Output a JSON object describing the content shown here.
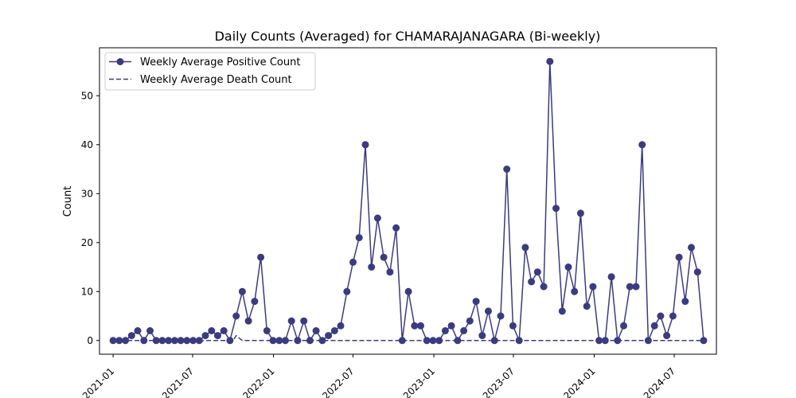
{
  "chart_data": {
    "type": "line",
    "title": "Daily Counts (Averaged) for CHAMARAJANAGARA (Bi-weekly)",
    "xlabel": "",
    "ylabel": "Count",
    "x_tick_labels": [
      "2021-01",
      "2021-07",
      "2022-01",
      "2022-07",
      "2023-01",
      "2023-07",
      "2024-01",
      "2024-07"
    ],
    "y_ticks": [
      0,
      10,
      20,
      30,
      40,
      50
    ],
    "ylim": [
      -2.8,
      59.8
    ],
    "xlim": [
      "2020-12-01",
      "2024-10-05"
    ],
    "legend_position": "top-left",
    "grid": false,
    "colors": {
      "series": "#3b3b7f"
    },
    "series": [
      {
        "name": "Weekly Average Positive Count",
        "style": "solid-marker",
        "x": [
          "2021-01-01",
          "2021-01-15",
          "2021-01-29",
          "2021-02-12",
          "2021-02-26",
          "2021-03-12",
          "2021-03-26",
          "2021-04-09",
          "2021-04-23",
          "2021-05-07",
          "2021-05-21",
          "2021-06-04",
          "2021-06-18",
          "2021-07-02",
          "2021-07-16",
          "2021-07-30",
          "2021-08-13",
          "2021-08-27",
          "2021-09-10",
          "2021-09-24",
          "2021-10-08",
          "2021-10-22",
          "2021-11-05",
          "2021-11-19",
          "2021-12-03",
          "2021-12-17",
          "2021-12-31",
          "2022-01-14",
          "2022-01-28",
          "2022-02-11",
          "2022-02-25",
          "2022-03-11",
          "2022-03-25",
          "2022-04-08",
          "2022-04-22",
          "2022-05-06",
          "2022-05-20",
          "2022-06-03",
          "2022-06-17",
          "2022-07-01",
          "2022-07-15",
          "2022-07-29",
          "2022-08-12",
          "2022-08-26",
          "2022-09-09",
          "2022-09-23",
          "2022-10-07",
          "2022-10-21",
          "2022-11-04",
          "2022-11-18",
          "2022-12-02",
          "2022-12-16",
          "2022-12-30",
          "2023-01-13",
          "2023-01-27",
          "2023-02-10",
          "2023-02-24",
          "2023-03-10",
          "2023-03-24",
          "2023-04-07",
          "2023-04-21",
          "2023-05-05",
          "2023-05-19",
          "2023-06-02",
          "2023-06-16",
          "2023-06-30",
          "2023-07-14",
          "2023-07-28",
          "2023-08-11",
          "2023-08-25",
          "2023-09-08",
          "2023-09-22",
          "2023-10-06",
          "2023-10-20",
          "2023-11-03",
          "2023-11-17",
          "2023-12-01",
          "2023-12-15",
          "2023-12-29",
          "2024-01-12",
          "2024-01-26",
          "2024-02-09",
          "2024-02-23",
          "2024-03-08",
          "2024-03-22",
          "2024-04-05",
          "2024-04-19",
          "2024-05-03",
          "2024-05-17",
          "2024-05-31",
          "2024-06-14",
          "2024-06-28",
          "2024-07-12",
          "2024-07-26",
          "2024-08-09",
          "2024-08-23",
          "2024-09-06"
        ],
        "y": [
          0,
          0,
          0,
          1,
          2,
          0,
          2,
          0,
          0,
          0,
          0,
          0,
          0,
          0,
          0,
          1,
          2,
          1,
          2,
          0,
          5,
          10,
          4,
          8,
          17,
          2,
          0,
          0,
          0,
          4,
          0,
          4,
          0,
          2,
          0,
          1,
          2,
          3,
          10,
          16,
          21,
          40,
          15,
          25,
          17,
          14,
          23,
          0,
          10,
          3,
          3,
          0,
          0,
          0,
          2,
          3,
          0,
          2,
          4,
          8,
          1,
          6,
          0,
          5,
          35,
          3,
          0,
          19,
          12,
          14,
          11,
          57,
          27,
          6,
          15,
          10,
          26,
          7,
          11,
          0,
          0,
          13,
          0,
          3,
          11,
          11,
          40,
          0,
          3,
          5,
          1,
          5,
          17,
          8,
          19,
          14,
          0
        ]
      },
      {
        "name": "Weekly Average Death Count",
        "style": "dashed",
        "x": [
          "2021-01-01",
          "2021-07-02",
          "2021-10-01",
          "2021-10-08",
          "2021-10-22",
          "2024-09-06"
        ],
        "y": [
          0,
          0,
          0,
          1,
          0,
          0
        ]
      }
    ]
  }
}
